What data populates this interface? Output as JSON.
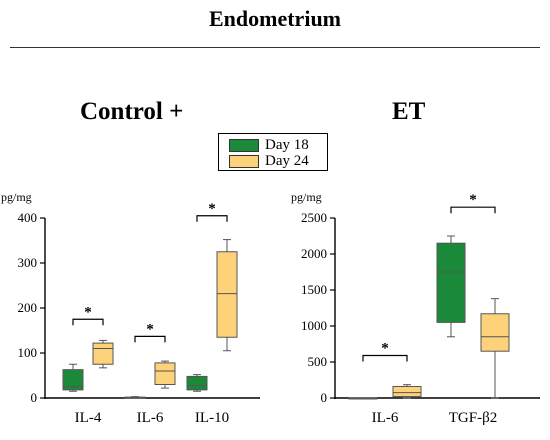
{
  "figure_title": "Endometrium",
  "colors": {
    "day18": "#1a8a3a",
    "day24": "#fdd27a",
    "stroke": "#555555"
  },
  "legend": [
    {
      "label": "Day 18",
      "color": "#1a8a3a"
    },
    {
      "label": "Day 24",
      "color": "#fdd27a"
    }
  ],
  "chart_data": [
    {
      "type": "box",
      "title": "Control +",
      "ylabel": "pg/mg",
      "ylim": [
        0,
        400
      ],
      "yticks": [
        "0",
        "100",
        "200",
        "300",
        "400"
      ],
      "yticks_values": [
        0,
        100,
        200,
        300,
        400
      ],
      "categories": [
        "IL-4",
        "IL-6",
        "IL-10"
      ],
      "series": [
        {
          "name": "Day 18",
          "boxes": [
            {
              "category": "IL-4",
              "min": 15,
              "q1": 18,
              "median": 25,
              "q3": 63,
              "max": 75
            },
            {
              "category": "IL-6",
              "min": 0,
              "q1": 0,
              "median": 1,
              "q3": 2,
              "max": 3
            },
            {
              "category": "IL-10",
              "min": 15,
              "q1": 18,
              "median": 28,
              "q3": 48,
              "max": 52
            }
          ]
        },
        {
          "name": "Day 24",
          "boxes": [
            {
              "category": "IL-4",
              "min": 67,
              "q1": 75,
              "median": 110,
              "q3": 122,
              "max": 128
            },
            {
              "category": "IL-6",
              "min": 22,
              "q1": 30,
              "median": 60,
              "q3": 78,
              "max": 82
            },
            {
              "category": "IL-10",
              "min": 105,
              "q1": 135,
              "median": 232,
              "q3": 325,
              "max": 352
            }
          ]
        }
      ],
      "significance": [
        {
          "category": "IL-4",
          "label": "*",
          "at": 175
        },
        {
          "category": "IL-6",
          "label": "*",
          "at": 137
        },
        {
          "category": "IL-10",
          "label": "*",
          "at": 405
        }
      ]
    },
    {
      "type": "box",
      "title": "ET",
      "ylabel": "pg/mg",
      "ylim": [
        0,
        2500
      ],
      "yticks": [
        "0",
        "500",
        "1000",
        "1500",
        "2000",
        "2500"
      ],
      "yticks_values": [
        0,
        500,
        1000,
        1500,
        2000,
        2500
      ],
      "categories": [
        "IL-6",
        "TGF-β2"
      ],
      "series": [
        {
          "name": "Day 18",
          "boxes": [
            {
              "category": "IL-6",
              "min": 0,
              "q1": 0,
              "median": 0,
              "q3": 0,
              "max": 0
            },
            {
              "category": "TGF-β2",
              "min": 850,
              "q1": 1050,
              "median": 1750,
              "q3": 2150,
              "max": 2250
            }
          ]
        },
        {
          "name": "Day 24",
          "boxes": [
            {
              "category": "IL-6",
              "min": 0,
              "q1": 20,
              "median": 75,
              "q3": 160,
              "max": 185
            },
            {
              "category": "TGF-β2",
              "min": 0,
              "q1": 650,
              "median": 850,
              "q3": 1170,
              "max": 1380
            }
          ]
        }
      ],
      "significance": [
        {
          "category": "IL-6",
          "label": "*",
          "at": 590
        },
        {
          "category": "TGF-β2",
          "label": "*",
          "at": 2650
        }
      ]
    }
  ]
}
